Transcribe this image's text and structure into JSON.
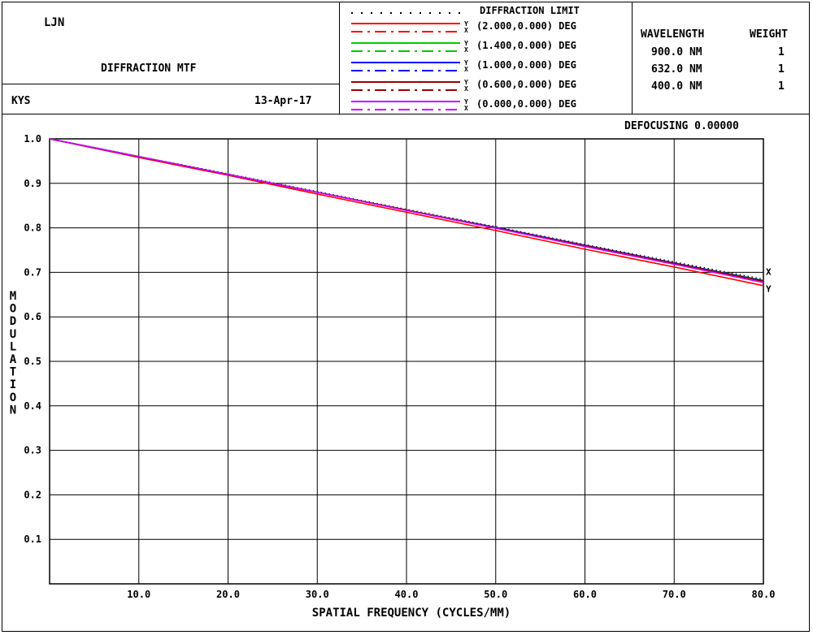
{
  "header": {
    "lens_name": "LJN",
    "plot_title": "DIFFRACTION MTF",
    "designer": "KYS",
    "date": "13-Apr-17"
  },
  "legend": {
    "diffraction_label": "DIFFRACTION LIMIT",
    "fields": [
      {
        "label": "(2.000,0.000) DEG",
        "color": "#ff0000"
      },
      {
        "label": "(1.400,0.000) DEG",
        "color": "#00cc00"
      },
      {
        "label": "(1.000,0.000) DEG",
        "color": "#0000ff"
      },
      {
        "label": "(0.600,0.000) DEG",
        "color": "#990000"
      },
      {
        "label": "(0.000,0.000) DEG",
        "color": "#cc00ff"
      }
    ],
    "x_marker": "X",
    "y_marker": "Y"
  },
  "wavelengths": {
    "header_wavelength": "WAVELENGTH",
    "header_weight": "WEIGHT",
    "rows": [
      {
        "wavelength": "900.0 NM",
        "weight": "1"
      },
      {
        "wavelength": "632.0 NM",
        "weight": "1"
      },
      {
        "wavelength": "400.0 NM",
        "weight": "1"
      }
    ]
  },
  "defocusing": "DEFOCUSING 0.00000",
  "chart_data": {
    "type": "line",
    "xlabel": "SPATIAL FREQUENCY (CYCLES/MM)",
    "ylabel": "MODULATION",
    "xlim": [
      0,
      80
    ],
    "ylim": [
      0,
      1
    ],
    "x_ticks": [
      "10.0",
      "20.0",
      "30.0",
      "40.0",
      "50.0",
      "60.0",
      "70.0",
      "80.0"
    ],
    "y_ticks": [
      "0.1",
      "0.2",
      "0.3",
      "0.4",
      "0.5",
      "0.6",
      "0.7",
      "0.8",
      "0.9",
      "1.0"
    ],
    "grid": true,
    "end_labels": [
      "X",
      "Y"
    ],
    "x": [
      0,
      10,
      20,
      30,
      40,
      50,
      60,
      70,
      80
    ],
    "series": [
      {
        "name": "DIFFRACTION LIMIT",
        "color": "#000000",
        "style": "dotted",
        "values": [
          1.0,
          0.96,
          0.921,
          0.881,
          0.841,
          0.802,
          0.762,
          0.723,
          0.684
        ]
      },
      {
        "name": "(2.000,0.000) DEG",
        "color": "#ff0000",
        "style": "solid",
        "values": [
          1.0,
          0.958,
          0.918,
          0.876,
          0.835,
          0.794,
          0.752,
          0.712,
          0.67
        ]
      },
      {
        "name": "(1.400,0.000) DEG",
        "color": "#00cc00",
        "style": "solid",
        "values": [
          1.0,
          0.96,
          0.92,
          0.88,
          0.84,
          0.801,
          0.761,
          0.721,
          0.682
        ]
      },
      {
        "name": "(1.000,0.000) DEG",
        "color": "#0000ff",
        "style": "solid",
        "values": [
          1.0,
          0.96,
          0.92,
          0.88,
          0.84,
          0.801,
          0.761,
          0.721,
          0.681
        ]
      },
      {
        "name": "(0.600,0.000) DEG",
        "color": "#990000",
        "style": "solid",
        "values": [
          1.0,
          0.96,
          0.92,
          0.88,
          0.84,
          0.8,
          0.76,
          0.72,
          0.68
        ]
      },
      {
        "name": "(0.000,0.000) DEG",
        "color": "#cc00ff",
        "style": "solid",
        "values": [
          1.0,
          0.96,
          0.92,
          0.88,
          0.839,
          0.799,
          0.758,
          0.718,
          0.677
        ]
      }
    ]
  }
}
